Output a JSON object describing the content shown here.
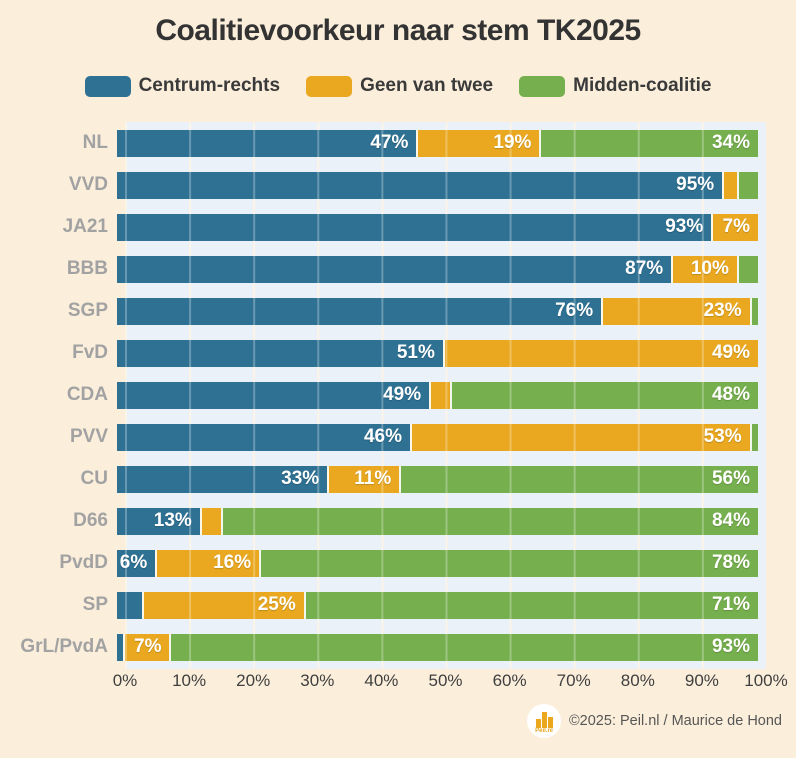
{
  "title": "Coalitievoorkeur naar stem TK2025",
  "colors": {
    "background": "#FBEFDC",
    "plot_background": "#EBF1F8",
    "centrum_rechts": "#2F7193",
    "geen_van_twee": "#E9A820",
    "midden_coalitie": "#76AF4D",
    "title_text": "#333333",
    "category_label": "#A2A2A2",
    "bar_label": "#FFFFFF"
  },
  "legend": [
    {
      "label": "Centrum-rechts",
      "color": "#2F7193"
    },
    {
      "label": "Geen van twee",
      "color": "#E9A820"
    },
    {
      "label": "Midden-coalitie",
      "color": "#76AF4D"
    }
  ],
  "chart_data": {
    "type": "bar",
    "orientation": "horizontal",
    "stacked": true,
    "title": "Coalitievoorkeur naar stem TK2025",
    "categories": [
      "NL",
      "VVD",
      "JA21",
      "BBB",
      "SGP",
      "FvD",
      "CDA",
      "PVV",
      "CU",
      "D66",
      "PvdD",
      "SP",
      "GrL/PvdA"
    ],
    "series": [
      {
        "name": "Centrum-rechts",
        "color": "#2F7193",
        "values": [
          47,
          95,
          93,
          87,
          76,
          51,
          49,
          46,
          33,
          13,
          6,
          4,
          1
        ]
      },
      {
        "name": "Geen van twee",
        "color": "#E9A820",
        "values": [
          19,
          2,
          7,
          10,
          23,
          49,
          3,
          53,
          11,
          3,
          16,
          25,
          7
        ]
      },
      {
        "name": "Midden-coalitie",
        "color": "#76AF4D",
        "values": [
          34,
          3,
          0,
          3,
          1,
          0,
          48,
          1,
          56,
          84,
          78,
          71,
          93
        ]
      }
    ],
    "data_labels": [
      [
        "47%",
        "19%",
        "34%"
      ],
      [
        "95%",
        "",
        ""
      ],
      [
        "93%",
        "7%",
        ""
      ],
      [
        "87%",
        "10%",
        ""
      ],
      [
        "76%",
        "23%",
        ""
      ],
      [
        "51%",
        "49%",
        ""
      ],
      [
        "49%",
        "",
        "48%"
      ],
      [
        "46%",
        "53%",
        ""
      ],
      [
        "33%",
        "11%",
        "56%"
      ],
      [
        "13%",
        "",
        "84%"
      ],
      [
        "6%",
        "16%",
        "78%"
      ],
      [
        "",
        "25%",
        "71%"
      ],
      [
        "",
        "7%",
        "93%"
      ]
    ],
    "xlim": [
      0,
      100
    ],
    "x_ticks": [
      "0%",
      "10%",
      "20%",
      "30%",
      "40%",
      "50%",
      "60%",
      "70%",
      "80%",
      "90%",
      "100%"
    ],
    "grid": true,
    "legend_position": "top"
  },
  "footer": {
    "credit": "©2025: Peil.nl / Maurice de Hond",
    "logo_text": "Peil.nl"
  }
}
